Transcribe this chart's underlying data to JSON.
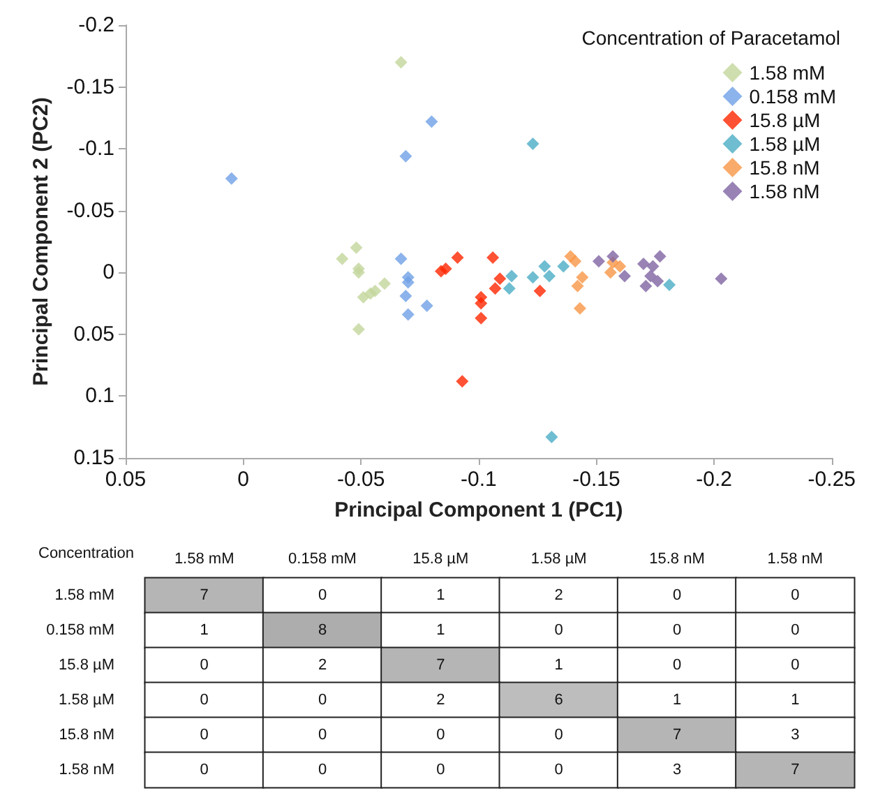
{
  "chart_data": [
    {
      "type": "scatter",
      "xlabel": "Principal Component 1 (PC1)",
      "ylabel": "Principal Component 2 (PC2)",
      "legend_title": "Concentration of Paracetamol",
      "xlim": [
        0.05,
        -0.25
      ],
      "xticks": [
        0.05,
        0,
        -0.05,
        -0.1,
        -0.15,
        -0.2,
        -0.25
      ],
      "ylim": [
        0.15,
        -0.2
      ],
      "yticks": [
        -0.2,
        -0.15,
        -0.1,
        -0.05,
        0,
        0.05,
        0.1,
        0.15
      ],
      "grid": false,
      "legend": "top right",
      "marker": "diamond",
      "series": [
        {
          "name": "1.58 mM",
          "color": "#c3d69b",
          "x": [
            -0.067,
            -0.042,
            -0.048,
            -0.049,
            -0.049,
            -0.06,
            -0.056,
            -0.054,
            -0.051,
            -0.049
          ],
          "values": [
            -0.17,
            -0.011,
            -0.02,
            -0.003,
            0.0,
            0.009,
            0.015,
            0.017,
            0.02,
            0.046
          ]
        },
        {
          "name": "0.158 mM",
          "color": "#6fa0e6",
          "x": [
            0.005,
            -0.08,
            -0.069,
            -0.067,
            -0.07,
            -0.07,
            -0.069,
            -0.078,
            -0.07
          ],
          "values": [
            -0.076,
            -0.122,
            -0.094,
            -0.011,
            0.004,
            0.008,
            0.019,
            0.027,
            0.034
          ]
        },
        {
          "name": "15.8 µM",
          "color": "#ff2600",
          "x": [
            -0.084,
            -0.086,
            -0.091,
            -0.106,
            -0.109,
            -0.107,
            -0.101,
            -0.101,
            -0.101,
            -0.093,
            -0.126
          ],
          "values": [
            -0.001,
            -0.003,
            -0.012,
            -0.012,
            0.005,
            0.013,
            0.02,
            0.025,
            0.037,
            0.088,
            0.015
          ]
        },
        {
          "name": "1.58 µM",
          "color": "#4bacc6",
          "x": [
            -0.114,
            -0.113,
            -0.123,
            -0.128,
            -0.13,
            -0.136,
            -0.131,
            -0.181,
            -0.123
          ],
          "values": [
            0.003,
            0.013,
            0.004,
            -0.005,
            0.003,
            -0.005,
            0.133,
            0.01,
            -0.104
          ]
        },
        {
          "name": "15.8 nM",
          "color": "#f79646",
          "x": [
            -0.139,
            -0.141,
            -0.144,
            -0.142,
            -0.143,
            -0.156,
            -0.157,
            -0.16
          ],
          "values": [
            -0.013,
            -0.009,
            0.004,
            0.011,
            0.029,
            0.0,
            -0.008,
            -0.005
          ]
        },
        {
          "name": "1.58 nM",
          "color": "#8064a2",
          "x": [
            -0.151,
            -0.157,
            -0.162,
            -0.17,
            -0.174,
            -0.177,
            -0.173,
            -0.176,
            -0.171,
            -0.203
          ],
          "values": [
            -0.009,
            -0.013,
            0.003,
            -0.007,
            -0.005,
            -0.013,
            0.003,
            0.007,
            0.011,
            0.005
          ]
        }
      ]
    },
    {
      "type": "heatmap",
      "ylabel": "Concentration",
      "categories": [
        "1.58 mM",
        "0.158 mM",
        "15.8 µM",
        "1.58 µM",
        "15.8 nM",
        "1.58 nM"
      ],
      "y_categories": [
        "1.58 mM",
        "0.158 mM",
        "15.8 µM",
        "1.58 µM",
        "15.8 nM",
        "1.58 nM"
      ],
      "data_labels": true,
      "cells": [
        [
          7,
          0,
          1,
          2,
          0,
          0
        ],
        [
          1,
          8,
          1,
          0,
          0,
          0
        ],
        [
          0,
          2,
          7,
          1,
          0,
          0
        ],
        [
          0,
          0,
          2,
          6,
          1,
          1
        ],
        [
          0,
          0,
          0,
          0,
          7,
          3
        ],
        [
          0,
          0,
          0,
          0,
          3,
          7
        ]
      ]
    }
  ]
}
